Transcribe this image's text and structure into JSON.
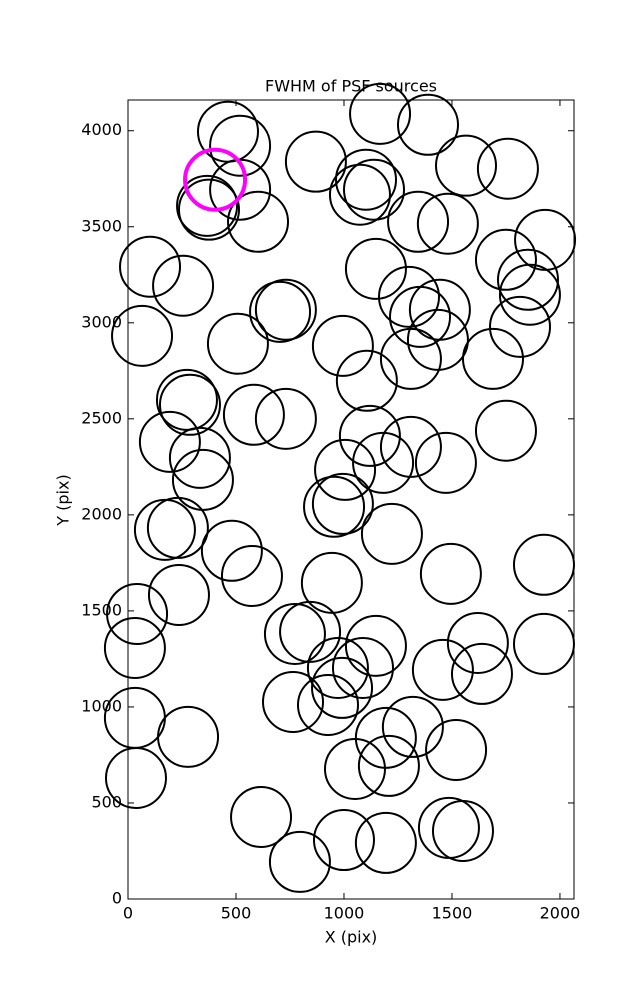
{
  "chart_data": {
    "type": "scatter",
    "title": "FWHM of PSF sources",
    "x_label": "X (pix)",
    "y_label": "Y (pix)",
    "xlim": [
      0,
      2065
    ],
    "ylim": [
      0,
      4160
    ],
    "xticks": [
      0,
      500,
      1000,
      1500,
      2000
    ],
    "yticks": [
      0,
      500,
      1000,
      1500,
      2000,
      2500,
      3000,
      3500,
      4000
    ],
    "series": [
      {
        "color": "#000000",
        "x": [
          463,
          519,
          519,
          366,
          375,
          602,
          102,
          255,
          65,
          509,
          704,
          731,
          273,
          287,
          194,
          333,
          347,
          583,
          731,
          171,
          231,
          481,
          574,
          42,
          32,
          236,
          32,
          37,
          278,
          616,
          796,
          764,
          773,
          843,
          944,
          972,
          926,
          991,
          1088,
          1148,
          1051,
          1194,
          1208,
          1319,
          1519,
          1458,
          1620,
          1639,
          1926,
          1926,
          1495,
          1222,
          954,
          995,
          1005,
          1120,
          1181,
          1310,
          1472,
          1750,
          1310,
          1106,
          995,
          1148,
          1301,
          1352,
          1444,
          1435,
          1690,
          1815,
          1750,
          1852,
          1861,
          1931,
          1343,
          1481,
          1565,
          1759,
          1167,
          1389,
          870,
          1102,
          1074,
          1139,
          1000,
          1194,
          1486,
          1551
        ],
        "values": [
          3995,
          3922,
          3693,
          3609,
          3589,
          3526,
          3292,
          3193,
          2932,
          2891,
          3057,
          3068,
          2599,
          2573,
          2380,
          2297,
          2182,
          2521,
          2500,
          1922,
          1932,
          1813,
          1682,
          1484,
          1307,
          1583,
          943,
          630,
          844,
          427,
          193,
          1026,
          1380,
          1391,
          1646,
          1203,
          1010,
          1099,
          1203,
          1318,
          677,
          839,
          693,
          896,
          776,
          1193,
          1333,
          1172,
          1328,
          1740,
          1693,
          1901,
          2042,
          2057,
          2234,
          2411,
          2271,
          2354,
          2271,
          2438,
          2812,
          2698,
          2880,
          3281,
          3135,
          3031,
          3068,
          2911,
          2812,
          2979,
          3328,
          3224,
          3146,
          3432,
          3526,
          3516,
          3818,
          3802,
          4088,
          4031,
          3839,
          3745,
          3667,
          3693,
          307,
          292,
          370,
          354
        ]
      },
      {
        "color": "#ff00ff",
        "x": [
          403
        ],
        "values": [
          3745
        ]
      }
    ]
  }
}
